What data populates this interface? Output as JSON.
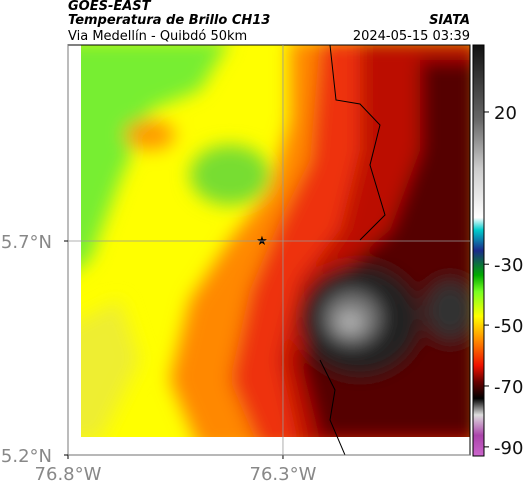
{
  "header": {
    "product": "GOES-EAST",
    "title": "Temperatura de Brillo CH13",
    "subtitle": "Via Medellín - Quibdó 50km",
    "source": "SIATA",
    "timestamp": "2024-05-15 03:39"
  },
  "map": {
    "xlim": [
      -76.8,
      -75.865
    ],
    "ylim": [
      5.2,
      6.158
    ],
    "xticks": [
      {
        "value": -76.8,
        "label": "76.8°W"
      },
      {
        "value": -76.3,
        "label": "76.3°W"
      }
    ],
    "yticks": [
      {
        "value": 5.7,
        "label": "5.7°N"
      },
      {
        "value": 5.2,
        "label": "5.2°N"
      }
    ]
  },
  "colorbar": {
    "lim": [
      -93,
      42
    ],
    "ticks": [
      20,
      -30,
      -50,
      -70,
      -90
    ]
  }
}
